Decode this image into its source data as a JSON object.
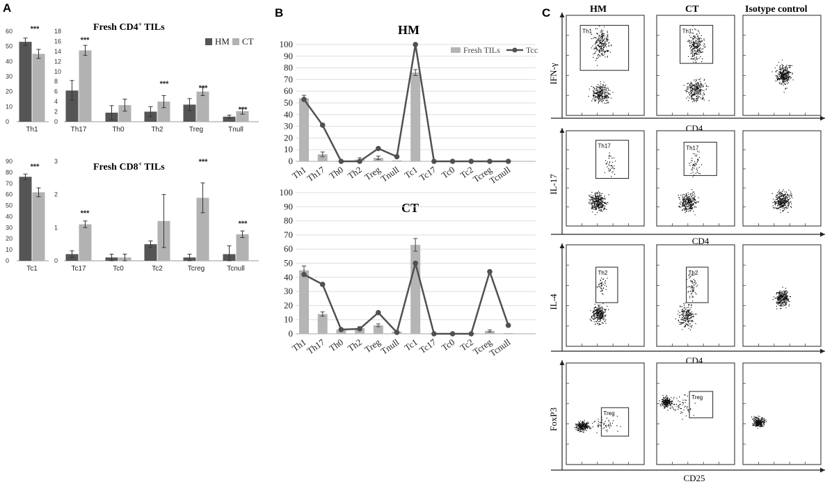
{
  "panels": {
    "a": "A",
    "b": "B",
    "c": "C"
  },
  "colors": {
    "hm": "#555555",
    "ct": "#b2b2b2",
    "line": "#505050",
    "fresh": "#b5b5b5",
    "grid": "#dddddd"
  },
  "chart_data": [
    {
      "id": "cd4",
      "type": "bar",
      "title_parts": [
        "Fresh CD4",
        "+",
        " TILs"
      ],
      "legend": [
        "HM",
        "CT"
      ],
      "left_axis": {
        "categories": [
          "Th1"
        ],
        "ylim": [
          0,
          60
        ],
        "ticks": [
          "0",
          "10",
          "20",
          "30",
          "40",
          "50",
          "60"
        ]
      },
      "right_axis": {
        "categories": [
          "Th17",
          "Th0",
          "Th2",
          "Treg",
          "Tnull"
        ],
        "ylim": [
          0,
          18
        ],
        "ticks": [
          "0",
          "2",
          "4",
          "6",
          "8",
          "10",
          "12",
          "14",
          "16",
          "18"
        ]
      },
      "categories": [
        "Th1",
        "Th17",
        "Th0",
        "Th2",
        "Treg",
        "Tnull"
      ],
      "axis": [
        "left",
        "right",
        "right",
        "right",
        "right",
        "right"
      ],
      "series": [
        {
          "name": "HM",
          "values": [
            53,
            6.2,
            1.8,
            2.0,
            3.4,
            1.0
          ],
          "err": [
            2.5,
            2.0,
            1.4,
            1.0,
            1.2,
            0.3
          ]
        },
        {
          "name": "CT",
          "values": [
            45,
            14.2,
            3.3,
            4.0,
            6.0,
            2.1
          ],
          "err": [
            3.0,
            1.0,
            1.2,
            1.2,
            0.8,
            0.6
          ]
        }
      ],
      "significance": [
        "***",
        "***",
        "",
        "***",
        "***",
        "***"
      ]
    },
    {
      "id": "cd8",
      "type": "bar",
      "title_parts": [
        "Fresh CD8",
        "+",
        " TILs"
      ],
      "left_axis": {
        "categories": [
          "Tc1"
        ],
        "ylim": [
          0,
          90
        ],
        "ticks": [
          "0",
          "10",
          "20",
          "30",
          "40",
          "50",
          "60",
          "70",
          "80",
          "90"
        ]
      },
      "right_axis": {
        "categories": [
          "Tc17",
          "Tc0",
          "Tc2",
          "Tcreg",
          "Tcnull"
        ],
        "ylim": [
          0,
          3
        ],
        "ticks": [
          "0",
          "1",
          "2",
          "3"
        ]
      },
      "categories": [
        "Tc1",
        "Tc17",
        "Tc0",
        "Tc2",
        "Tcreg",
        "Tcnull"
      ],
      "axis": [
        "left",
        "right",
        "right",
        "right",
        "right",
        "right"
      ],
      "series": [
        {
          "name": "HM",
          "values": [
            76,
            0.2,
            0.1,
            0.5,
            0.1,
            0.2
          ],
          "err": [
            2.5,
            0.1,
            0.1,
            0.1,
            0.1,
            0.25
          ]
        },
        {
          "name": "CT",
          "values": [
            62,
            1.1,
            0.1,
            1.2,
            1.9,
            0.8
          ],
          "err": [
            4.0,
            0.1,
            0.1,
            0.8,
            0.45,
            0.1
          ]
        }
      ],
      "significance": [
        "***",
        "***",
        "",
        "",
        "***",
        "***"
      ]
    },
    {
      "id": "hm",
      "type": "bar+line",
      "title": "HM",
      "legend": [
        "Fresh TILs",
        "Tcc"
      ],
      "categories": [
        "Th1",
        "Th17",
        "Th0",
        "Th2",
        "Treg",
        "Tnull",
        "Tc1",
        "Tc17",
        "Tc0",
        "Tc2",
        "Tcreg",
        "Tcnull"
      ],
      "ylim": [
        0,
        100
      ],
      "ticks": [
        "0",
        "10",
        "20",
        "30",
        "40",
        "50",
        "60",
        "70",
        "80",
        "90",
        "100"
      ],
      "fresh": [
        54,
        6,
        0.5,
        1.5,
        3,
        0.8,
        76,
        0.2,
        0,
        0.5,
        0,
        0.5
      ],
      "fresh_err": [
        2.5,
        2,
        0,
        1.5,
        1.5,
        0,
        2.5,
        0,
        0,
        0,
        0,
        0
      ],
      "tcc": [
        53,
        31,
        0,
        0,
        11,
        4,
        100,
        0,
        0,
        0,
        0,
        0
      ]
    },
    {
      "id": "ct",
      "type": "bar+line",
      "title": "CT",
      "categories": [
        "Th1",
        "Th17",
        "Th0",
        "Th2",
        "Treg",
        "Tnull",
        "Tc1",
        "Tc17",
        "Tc0",
        "Tc2",
        "Tcreg",
        "Tcnull"
      ],
      "ylim": [
        0,
        100
      ],
      "ticks": [
        "0",
        "10",
        "20",
        "30",
        "40",
        "50",
        "60",
        "70",
        "80",
        "90",
        "100"
      ],
      "fresh": [
        45,
        14,
        3,
        4,
        6,
        1.5,
        63,
        0.5,
        0.2,
        0.5,
        2,
        0.5
      ],
      "fresh_err": [
        3,
        1.5,
        0.5,
        1,
        1,
        0,
        4.5,
        0,
        0,
        0,
        0.7,
        0
      ],
      "tcc": [
        42,
        35,
        3,
        3.5,
        15,
        1,
        50,
        0,
        0,
        0,
        44,
        6
      ]
    }
  ],
  "flow": {
    "columns": [
      "HM",
      "CT",
      "Isotype control"
    ],
    "rows": [
      {
        "ylabel": "IFN-γ",
        "xlabel": "CD4",
        "gates": [
          "Th1",
          "Th1",
          ""
        ]
      },
      {
        "ylabel": "IL-17",
        "xlabel": "CD4",
        "gates": [
          "Th17",
          "Th17",
          ""
        ]
      },
      {
        "ylabel": "IL-4",
        "xlabel": "CD4",
        "gates": [
          "Th2",
          "Th2",
          ""
        ]
      },
      {
        "ylabel": "FoxP3",
        "xlabel": "CD25",
        "gates": [
          "Treg",
          "Treg",
          ""
        ]
      }
    ]
  }
}
